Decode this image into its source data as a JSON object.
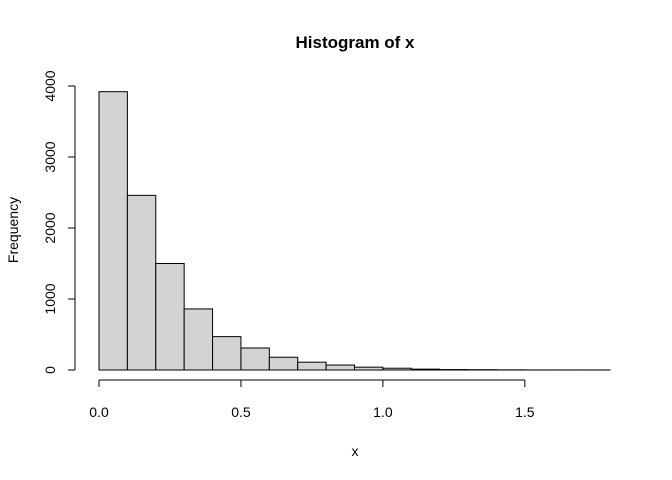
{
  "chart_data": {
    "type": "bar",
    "title": "Histogram of x",
    "xlabel": "x",
    "ylabel": "Frequency",
    "bin_width": 0.1,
    "bins": [
      {
        "start": 0.0,
        "end": 0.1,
        "count": 3920
      },
      {
        "start": 0.1,
        "end": 0.2,
        "count": 2460
      },
      {
        "start": 0.2,
        "end": 0.3,
        "count": 1500
      },
      {
        "start": 0.3,
        "end": 0.4,
        "count": 860
      },
      {
        "start": 0.4,
        "end": 0.5,
        "count": 470
      },
      {
        "start": 0.5,
        "end": 0.6,
        "count": 310
      },
      {
        "start": 0.6,
        "end": 0.7,
        "count": 180
      },
      {
        "start": 0.7,
        "end": 0.8,
        "count": 110
      },
      {
        "start": 0.8,
        "end": 0.9,
        "count": 70
      },
      {
        "start": 0.9,
        "end": 1.0,
        "count": 40
      },
      {
        "start": 1.0,
        "end": 1.1,
        "count": 25
      },
      {
        "start": 1.1,
        "end": 1.2,
        "count": 12
      },
      {
        "start": 1.2,
        "end": 1.3,
        "count": 6
      },
      {
        "start": 1.3,
        "end": 1.4,
        "count": 4
      },
      {
        "start": 1.4,
        "end": 1.5,
        "count": 2
      },
      {
        "start": 1.5,
        "end": 1.6,
        "count": 1
      },
      {
        "start": 1.6,
        "end": 1.7,
        "count": 1
      },
      {
        "start": 1.7,
        "end": 1.8,
        "count": 1
      }
    ],
    "xticks": [
      0.0,
      0.5,
      1.0,
      1.5
    ],
    "xtick_labels": [
      "0.0",
      "0.5",
      "1.0",
      "1.5"
    ],
    "yticks": [
      0,
      1000,
      2000,
      3000,
      4000
    ],
    "ytick_labels": [
      "0",
      "1000",
      "2000",
      "3000",
      "4000"
    ],
    "xlim": [
      0,
      1.8
    ],
    "ylim": [
      0,
      4000
    ],
    "grid": false,
    "bar_color": "#d3d3d3",
    "edge_color": "#000000"
  }
}
